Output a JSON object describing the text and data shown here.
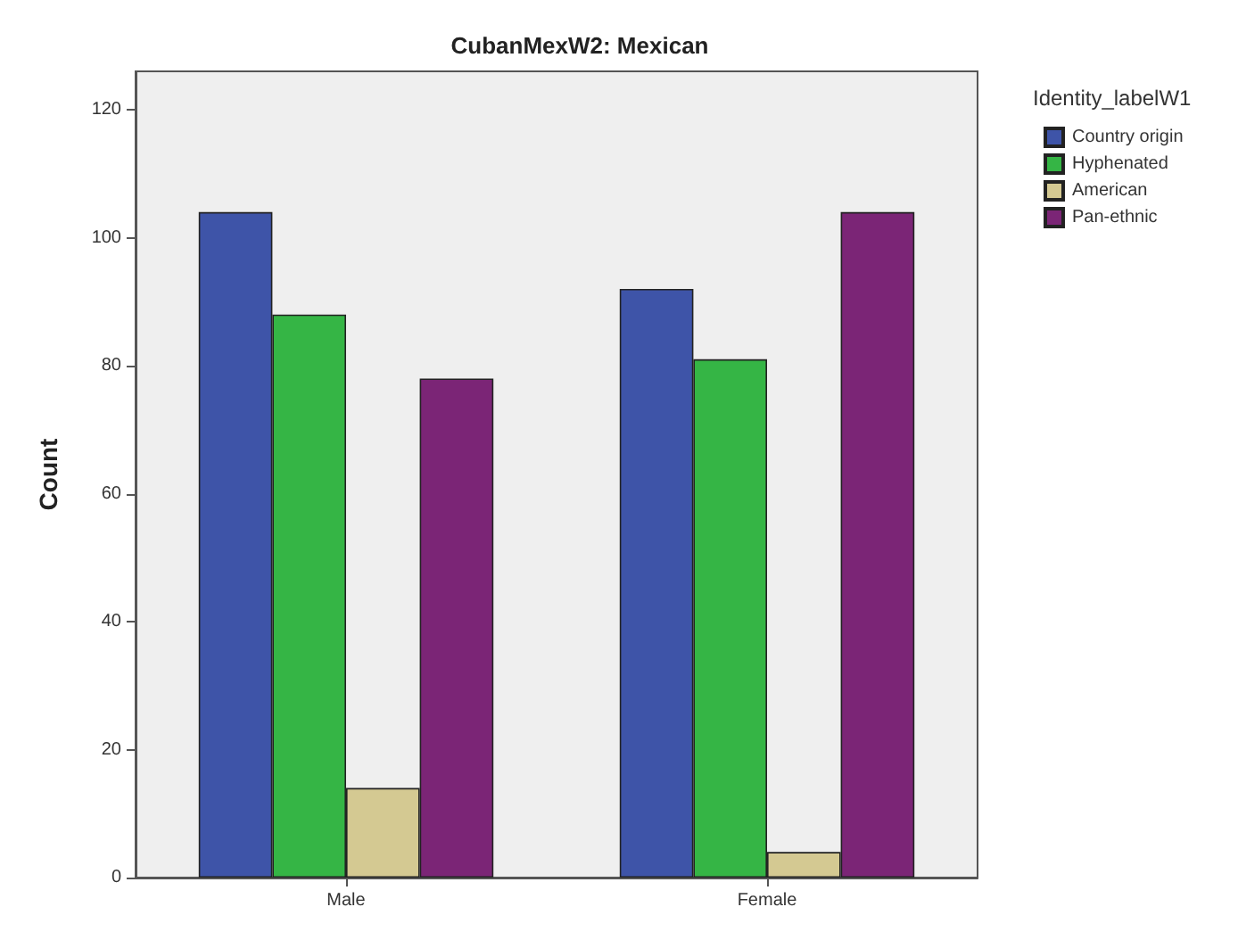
{
  "chart_data": {
    "type": "bar",
    "title": "CubanMexW2: Mexican",
    "ylabel": "Count",
    "legend_title": "Identity_labelW1",
    "categories": [
      "Male",
      "Female"
    ],
    "series": [
      {
        "name": "Country origin",
        "color": "#3e54a8",
        "values": [
          104,
          92
        ]
      },
      {
        "name": "Hyphenated",
        "color": "#35b545",
        "values": [
          88,
          81
        ]
      },
      {
        "name": "American",
        "color": "#d4c992",
        "values": [
          14,
          4
        ]
      },
      {
        "name": "Pan-ethnic",
        "color": "#7b2576",
        "values": [
          78,
          104
        ]
      }
    ],
    "ylim": [
      0,
      126
    ],
    "yticks": [
      0,
      20,
      40,
      60,
      80,
      100,
      120
    ],
    "grid": false,
    "legend": "top right"
  }
}
